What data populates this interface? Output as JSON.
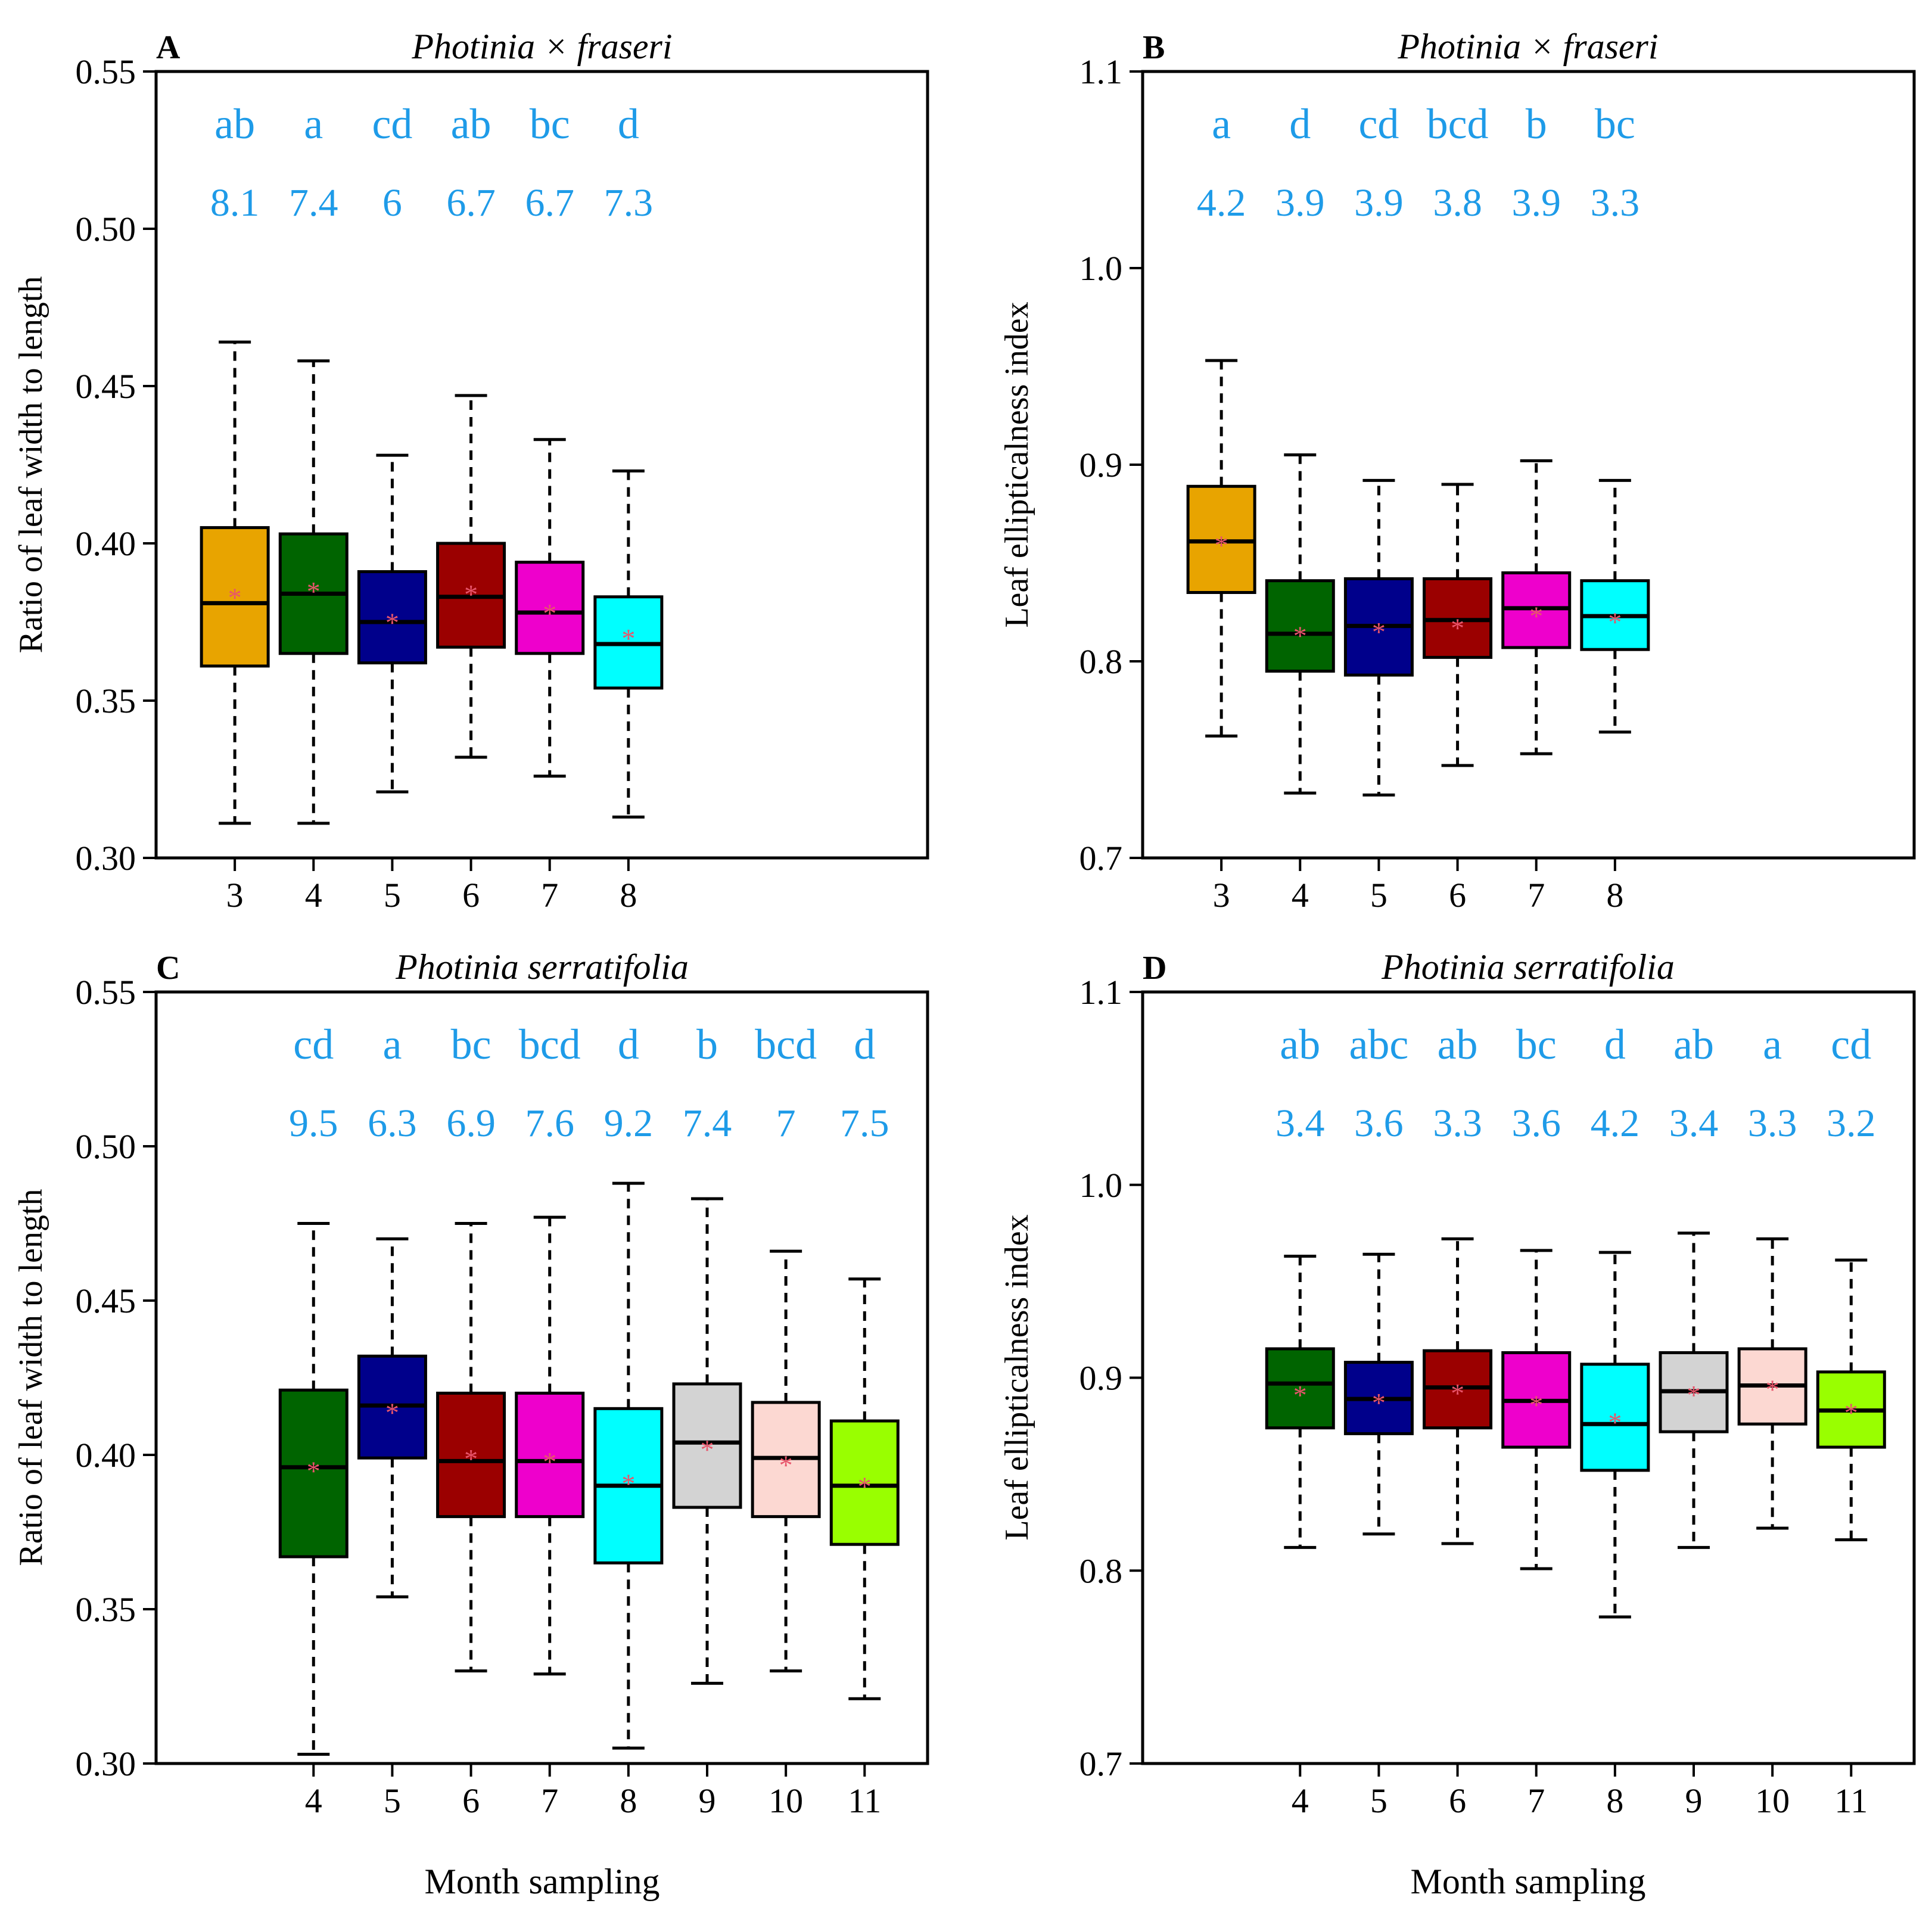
{
  "colors": {
    "3": "#e8a400",
    "4": "#006400",
    "5": "#00008b",
    "6": "#9b0000",
    "7": "#ee00cc",
    "8": "#00ffff",
    "9": "#d3d3d3",
    "10": "#fcd8d2",
    "11": "#99ff00",
    "annotation": "#1e9be8",
    "mean_marker": "#e8556b"
  },
  "shared_xlabel": "Month sampling",
  "mean_marker_symbol": "*",
  "chart_data": [
    {
      "panel": "A",
      "type": "box",
      "title": "Photinia × fraseri",
      "ylabel": "Ratio of leaf width to length",
      "ylim": [
        0.3,
        0.55
      ],
      "yticks": [
        "0.30",
        "0.35",
        "0.40",
        "0.45",
        "0.50",
        "0.55"
      ],
      "xrange": [
        2.0,
        11.8
      ],
      "categories": [
        "3",
        "4",
        "5",
        "6",
        "7",
        "8"
      ],
      "boxes": [
        {
          "x": 3,
          "min": 0.311,
          "q1": 0.361,
          "median": 0.381,
          "q3": 0.405,
          "max": 0.464,
          "mean": 0.384,
          "letter": "ab",
          "cv": "8.1"
        },
        {
          "x": 4,
          "min": 0.311,
          "q1": 0.365,
          "median": 0.384,
          "q3": 0.403,
          "max": 0.458,
          "mean": 0.386,
          "letter": "a",
          "cv": "7.4"
        },
        {
          "x": 5,
          "min": 0.321,
          "q1": 0.362,
          "median": 0.375,
          "q3": 0.391,
          "max": 0.428,
          "mean": 0.376,
          "letter": "cd",
          "cv": "6"
        },
        {
          "x": 6,
          "min": 0.332,
          "q1": 0.367,
          "median": 0.383,
          "q3": 0.4,
          "max": 0.447,
          "mean": 0.385,
          "letter": "ab",
          "cv": "6.7"
        },
        {
          "x": 7,
          "min": 0.326,
          "q1": 0.365,
          "median": 0.378,
          "q3": 0.394,
          "max": 0.433,
          "mean": 0.379,
          "letter": "bc",
          "cv": "6.7"
        },
        {
          "x": 8,
          "min": 0.313,
          "q1": 0.354,
          "median": 0.368,
          "q3": 0.383,
          "max": 0.423,
          "mean": 0.371,
          "letter": "d",
          "cv": "7.3"
        }
      ]
    },
    {
      "panel": "B",
      "type": "box",
      "title": "Photinia × fraseri",
      "ylabel": "Leaf ellipticalness index",
      "ylim": [
        0.7,
        1.1
      ],
      "yticks": [
        "0.7",
        "0.8",
        "0.9",
        "1.0",
        "1.1"
      ],
      "xrange": [
        2.0,
        11.8
      ],
      "categories": [
        "3",
        "4",
        "5",
        "6",
        "7",
        "8"
      ],
      "boxes": [
        {
          "x": 3,
          "min": 0.762,
          "q1": 0.835,
          "median": 0.861,
          "q3": 0.889,
          "max": 0.953,
          "mean": 0.861,
          "letter": "a",
          "cv": "4.2"
        },
        {
          "x": 4,
          "min": 0.733,
          "q1": 0.795,
          "median": 0.814,
          "q3": 0.841,
          "max": 0.905,
          "mean": 0.815,
          "letter": "d",
          "cv": "3.9"
        },
        {
          "x": 5,
          "min": 0.732,
          "q1": 0.793,
          "median": 0.818,
          "q3": 0.842,
          "max": 0.892,
          "mean": 0.817,
          "letter": "cd",
          "cv": "3.9"
        },
        {
          "x": 6,
          "min": 0.747,
          "q1": 0.802,
          "median": 0.821,
          "q3": 0.842,
          "max": 0.89,
          "mean": 0.819,
          "letter": "bcd",
          "cv": "3.8"
        },
        {
          "x": 7,
          "min": 0.753,
          "q1": 0.807,
          "median": 0.827,
          "q3": 0.845,
          "max": 0.902,
          "mean": 0.825,
          "letter": "b",
          "cv": "3.9"
        },
        {
          "x": 8,
          "min": 0.764,
          "q1": 0.806,
          "median": 0.823,
          "q3": 0.841,
          "max": 0.892,
          "mean": 0.822,
          "letter": "bc",
          "cv": "3.3"
        }
      ]
    },
    {
      "panel": "C",
      "type": "box",
      "title": "Photinia serratifolia",
      "ylabel": "Ratio of leaf width to length",
      "ylim": [
        0.3,
        0.55
      ],
      "yticks": [
        "0.30",
        "0.35",
        "0.40",
        "0.45",
        "0.50",
        "0.55"
      ],
      "xrange": [
        2.0,
        11.8
      ],
      "categories": [
        "4",
        "5",
        "6",
        "7",
        "8",
        "9",
        "10",
        "11"
      ],
      "boxes": [
        {
          "x": 4,
          "min": 0.303,
          "q1": 0.367,
          "median": 0.396,
          "q3": 0.421,
          "max": 0.475,
          "mean": 0.396,
          "letter": "cd",
          "cv": "9.5"
        },
        {
          "x": 5,
          "min": 0.354,
          "q1": 0.399,
          "median": 0.416,
          "q3": 0.432,
          "max": 0.47,
          "mean": 0.415,
          "letter": "a",
          "cv": "6.3"
        },
        {
          "x": 6,
          "min": 0.33,
          "q1": 0.38,
          "median": 0.398,
          "q3": 0.42,
          "max": 0.475,
          "mean": 0.4,
          "letter": "bc",
          "cv": "6.9"
        },
        {
          "x": 7,
          "min": 0.329,
          "q1": 0.38,
          "median": 0.398,
          "q3": 0.42,
          "max": 0.477,
          "mean": 0.399,
          "letter": "bcd",
          "cv": "7.6"
        },
        {
          "x": 8,
          "min": 0.305,
          "q1": 0.365,
          "median": 0.39,
          "q3": 0.415,
          "max": 0.488,
          "mean": 0.392,
          "letter": "d",
          "cv": "9.2"
        },
        {
          "x": 9,
          "min": 0.326,
          "q1": 0.383,
          "median": 0.404,
          "q3": 0.423,
          "max": 0.483,
          "mean": 0.403,
          "letter": "b",
          "cv": "7.4"
        },
        {
          "x": 10,
          "min": 0.33,
          "q1": 0.38,
          "median": 0.399,
          "q3": 0.417,
          "max": 0.466,
          "mean": 0.398,
          "letter": "bcd",
          "cv": "7"
        },
        {
          "x": 11,
          "min": 0.321,
          "q1": 0.371,
          "median": 0.39,
          "q3": 0.411,
          "max": 0.457,
          "mean": 0.391,
          "letter": "d",
          "cv": "7.5"
        }
      ]
    },
    {
      "panel": "D",
      "type": "box",
      "title": "Photinia serratifolia",
      "ylabel": "Leaf ellipticalness index",
      "ylim": [
        0.7,
        1.1
      ],
      "yticks": [
        "0.7",
        "0.8",
        "0.9",
        "1.0",
        "1.1"
      ],
      "xrange": [
        2.0,
        11.8
      ],
      "categories": [
        "4",
        "5",
        "6",
        "7",
        "8",
        "9",
        "10",
        "11"
      ],
      "boxes": [
        {
          "x": 4,
          "min": 0.812,
          "q1": 0.874,
          "median": 0.897,
          "q3": 0.915,
          "max": 0.963,
          "mean": 0.893,
          "letter": "ab",
          "cv": "3.4"
        },
        {
          "x": 5,
          "min": 0.819,
          "q1": 0.871,
          "median": 0.889,
          "q3": 0.908,
          "max": 0.964,
          "mean": 0.889,
          "letter": "abc",
          "cv": "3.6"
        },
        {
          "x": 6,
          "min": 0.814,
          "q1": 0.874,
          "median": 0.895,
          "q3": 0.914,
          "max": 0.972,
          "mean": 0.894,
          "letter": "ab",
          "cv": "3.3"
        },
        {
          "x": 7,
          "min": 0.801,
          "q1": 0.864,
          "median": 0.888,
          "q3": 0.913,
          "max": 0.966,
          "mean": 0.888,
          "letter": "bc",
          "cv": "3.6"
        },
        {
          "x": 8,
          "min": 0.776,
          "q1": 0.852,
          "median": 0.876,
          "q3": 0.907,
          "max": 0.965,
          "mean": 0.879,
          "letter": "d",
          "cv": "4.2"
        },
        {
          "x": 9,
          "min": 0.812,
          "q1": 0.872,
          "median": 0.893,
          "q3": 0.913,
          "max": 0.975,
          "mean": 0.893,
          "letter": "ab",
          "cv": "3.4"
        },
        {
          "x": 10,
          "min": 0.822,
          "q1": 0.876,
          "median": 0.896,
          "q3": 0.915,
          "max": 0.972,
          "mean": 0.896,
          "letter": "a",
          "cv": "3.3"
        },
        {
          "x": 11,
          "min": 0.816,
          "q1": 0.864,
          "median": 0.883,
          "q3": 0.903,
          "max": 0.961,
          "mean": 0.884,
          "letter": "cd",
          "cv": "3.2"
        }
      ]
    }
  ]
}
